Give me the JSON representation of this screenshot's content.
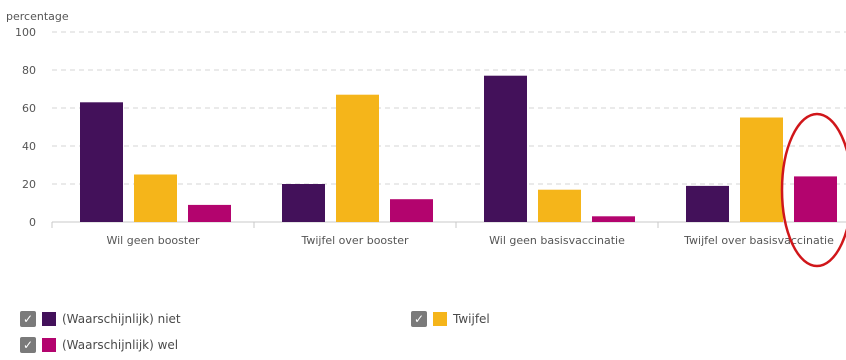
{
  "chart_data": {
    "type": "bar",
    "ylabel": "percentage",
    "categories": [
      "Wil geen booster",
      "Twijfel over booster",
      "Wil geen basisvaccinatie",
      "Twijfel over basisvaccinatie"
    ],
    "series": [
      {
        "name": "(Waarschijnlijk) niet",
        "color": "#43115a",
        "values": [
          63,
          20,
          77,
          19
        ]
      },
      {
        "name": "Twijfel",
        "color": "#f5b51a",
        "values": [
          25,
          67,
          17,
          55
        ]
      },
      {
        "name": "(Waarschijnlijk) wel",
        "color": "#b3046e",
        "values": [
          9,
          12,
          3,
          24
        ]
      }
    ],
    "ylim": [
      0,
      100
    ],
    "yticks": [
      "0",
      "20",
      "40",
      "60",
      "80",
      "100"
    ],
    "grid": true,
    "legend_position": "bottom",
    "annotation": "red ellipse highlighting the (Waarschijnlijk) wel bar of Twijfel over basisvaccinatie"
  },
  "legend": {
    "check_symbol": "✓",
    "items": [
      {
        "label": "(Waarschijnlijk) niet",
        "color": "#43115a"
      },
      {
        "label": "Twijfel",
        "color": "#f5b51a"
      },
      {
        "label": "(Waarschijnlijk) wel",
        "color": "#b3046e"
      }
    ]
  }
}
